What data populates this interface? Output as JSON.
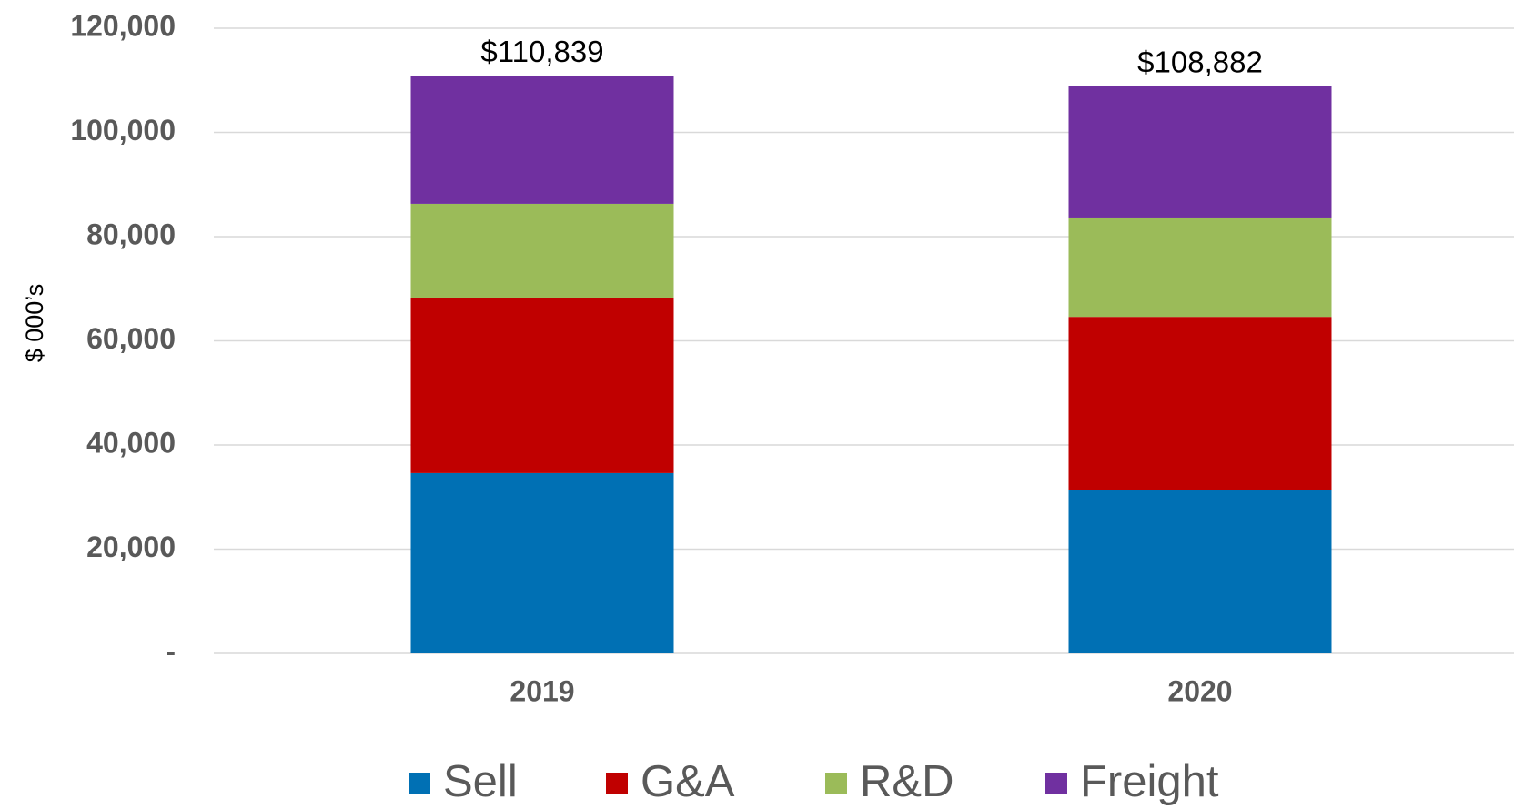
{
  "chart_data": {
    "type": "stacked_bar",
    "y_label": "$ 000’s",
    "categories": [
      "2019",
      "2020"
    ],
    "series": [
      {
        "name": "Sell",
        "color": "#0070b4",
        "values": [
          34600,
          31300
        ]
      },
      {
        "name": "G&A",
        "color": "#c00000",
        "values": [
          33700,
          33300
        ]
      },
      {
        "name": "R&D",
        "color": "#9bbb59",
        "values": [
          18000,
          18900
        ]
      },
      {
        "name": "Freight",
        "color": "#7030a0",
        "values": [
          24539,
          25382
        ]
      }
    ],
    "totals": [
      110839,
      108882
    ],
    "total_labels": [
      "$110,839",
      "$108,882"
    ],
    "ylim": [
      0,
      120000
    ],
    "yticks": [
      {
        "value": 0,
        "label": "-"
      },
      {
        "value": 20000,
        "label": "20,000"
      },
      {
        "value": 40000,
        "label": "40,000"
      },
      {
        "value": 60000,
        "label": "60,000"
      },
      {
        "value": 80000,
        "label": "80,000"
      },
      {
        "value": 100000,
        "label": "100,000"
      },
      {
        "value": 120000,
        "label": "120,000"
      }
    ],
    "grid": true,
    "legend": "bottom"
  }
}
